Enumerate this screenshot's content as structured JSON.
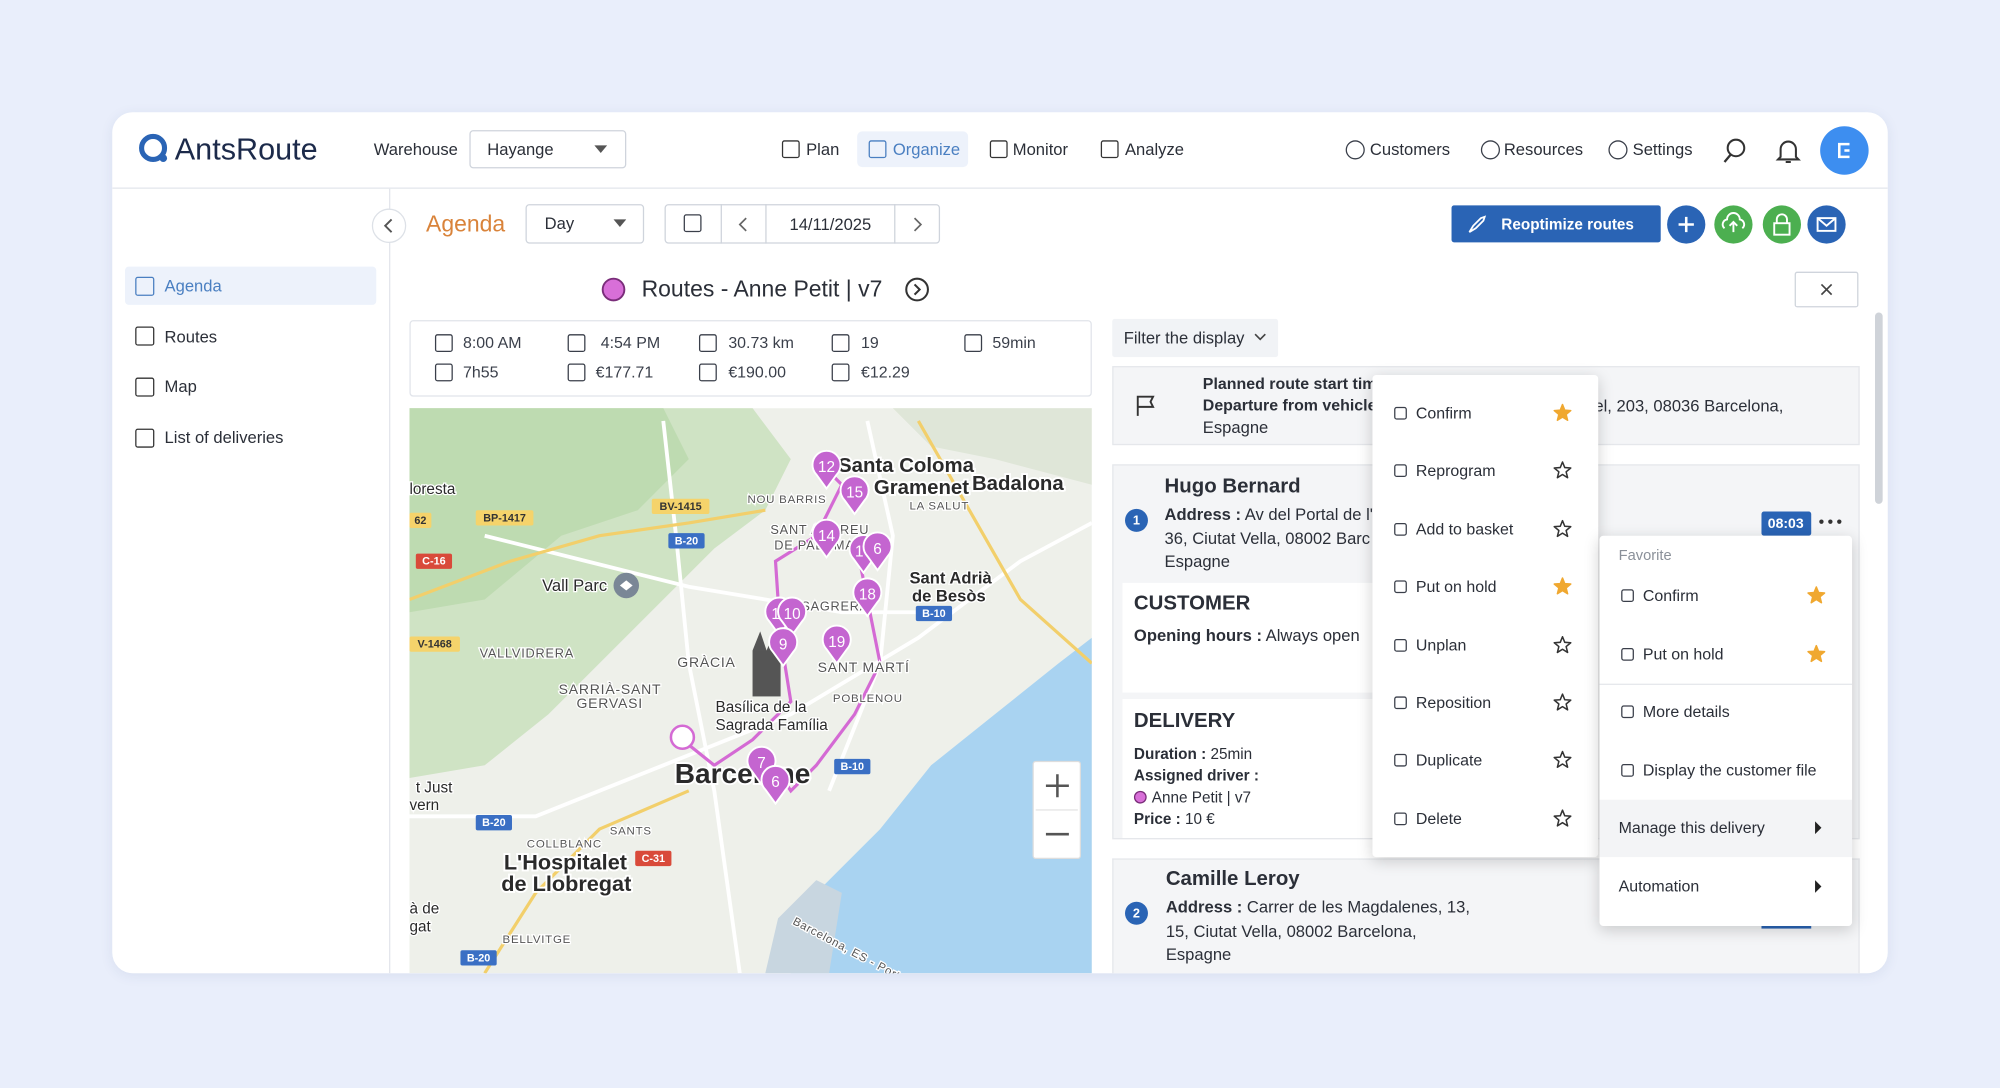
{
  "header": {
    "logo": "AntsRoute",
    "warehouse_label": "Warehouse",
    "warehouse": "Hayange",
    "nav": [
      "Plan",
      "Organize",
      "Monitor",
      "Analyze"
    ],
    "tools": [
      "Customers",
      "Resources",
      "Settings"
    ]
  },
  "toolbar": {
    "title": "Agenda",
    "view": "Day",
    "date": "14/11/2025",
    "reoptimize": "Reoptimize routes"
  },
  "sidebar": [
    "Agenda",
    "Routes",
    "Map",
    "List of deliveries"
  ],
  "route": {
    "title": "Routes - Anne Petit | v7",
    "start": "8:00 AM",
    "end": "4:54 PM",
    "distance": "30.73 km",
    "stops": "19",
    "drive": "59min",
    "duration": "7h55",
    "cost": "€177.71",
    "revenue": "€190.00",
    "margin": "€12.29"
  },
  "map": {
    "labels": [
      "Santa Coloma",
      "de Gramenet",
      "Badalona",
      "loresta",
      "NOU BARRIS",
      "LA SALUT",
      "SANT ANDREU",
      "DE PALOMAR",
      "Vall Parc",
      "Sant Adrià",
      "de Besòs",
      "LA SAGRERA",
      "VALLVIDRERA",
      "GRÀCIA",
      "SANT MARTÍ",
      "SARRIÀ-SANT",
      "GERVASI",
      "Basílica de la",
      "Sagrada Família",
      "POBLENOU",
      "Barcelone",
      "t Just",
      "vern",
      "SANTS",
      "COLLBLANC",
      "L'Hospitalet",
      "de Llobregat",
      "à de",
      "gat",
      "BELLVITGE",
      "Barcelona, ES - Porto Torres"
    ],
    "roads": [
      "BV-1415",
      "BP-1417",
      "B-20",
      "62",
      "C-16",
      "B-10",
      "V-1468",
      "B-10",
      "B-20",
      "C-31",
      "B-20"
    ],
    "markers": [
      "12",
      "15",
      "14",
      "17",
      "6",
      "18",
      "11",
      "10",
      "9",
      "19",
      "7",
      "6"
    ]
  },
  "filter": "Filter the display",
  "start_row": {
    "title": "Planned route start tim",
    "departure": "Departure from vehicle",
    "address": "el, 203, 08036 Barcelona,",
    "country": "Espagne"
  },
  "deliveries": [
    {
      "number": "1",
      "name": "Hugo Bernard",
      "address_label": "Address :",
      "address_lines": [
        "Av del Portal de l'",
        "36, Ciutat Vella, 08002 Barc",
        "Espagne"
      ],
      "time": "08:03",
      "customer": {
        "heading": "CUSTOMER",
        "opening_label": "Opening hours :",
        "opening": "Always open"
      },
      "delivery": {
        "heading": "DELIVERY",
        "duration_label": "Duration :",
        "duration": "25min",
        "driver_label": "Assigned driver :",
        "driver": "Anne Petit | v7",
        "price_label": "Price :",
        "price": "10 €"
      }
    },
    {
      "number": "2",
      "name": "Camille Leroy",
      "address_label": "Address :",
      "address_lines": [
        "Carrer de les Magdalenes, 13,",
        "15, Ciutat Vella, 08002 Barcelona,",
        "Espagne"
      ]
    }
  ],
  "actions": [
    {
      "label": "Confirm",
      "favorite": true
    },
    {
      "label": "Reprogram",
      "favorite": false
    },
    {
      "label": "Add to basket",
      "favorite": false
    },
    {
      "label": "Put on hold",
      "favorite": true
    },
    {
      "label": "Unplan",
      "favorite": false
    },
    {
      "label": "Reposition",
      "favorite": false
    },
    {
      "label": "Duplicate",
      "favorite": false
    },
    {
      "label": "Delete",
      "favorite": false
    }
  ],
  "context_menu": {
    "heading": "Favorite",
    "favorites": [
      "Confirm",
      "Put on hold"
    ],
    "items": [
      {
        "label": "More details",
        "submenu": false
      },
      {
        "label": "Display the customer file",
        "submenu": false
      },
      {
        "label": "Manage this delivery",
        "submenu": true
      },
      {
        "label": "Automation",
        "submenu": true
      }
    ]
  }
}
